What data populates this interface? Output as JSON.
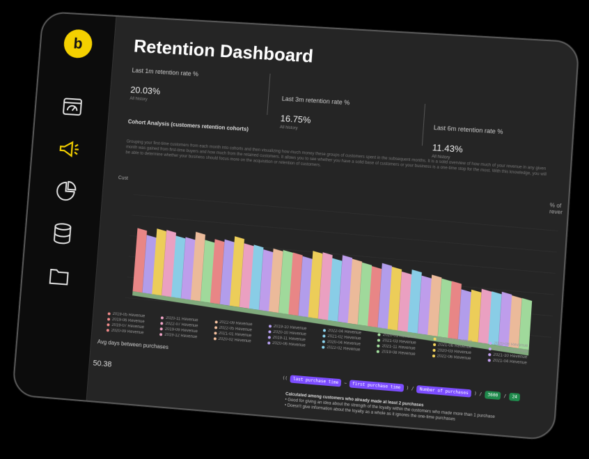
{
  "app": {
    "logo_glyph": "b",
    "title": "Retention Dashboard"
  },
  "sidebar": {
    "icons": [
      "dashboard-icon",
      "megaphone-icon",
      "pie-chart-icon",
      "database-icon",
      "folder-icon"
    ],
    "active": "megaphone-icon"
  },
  "colors": {
    "accent": "#f4d000"
  },
  "kpis": [
    {
      "label": "Last 1m retention rate %",
      "value": "20.03%",
      "sub": "All history"
    },
    {
      "label": "Last 3m retention rate %",
      "value": "16.75%",
      "sub": "All history"
    },
    {
      "label": "Last 6m retention rate %",
      "value": "11.43%",
      "sub": "All history"
    }
  ],
  "cohort": {
    "title": "Cohort Analysis (customers retention cohorts)",
    "description": "Grouping your first-time customers from each month into cohorts and then visualizing how much money these groups of customers spent in the subsequent months. It is a solid overview of how much of your revenue in any given month was gained from first-time buyers and how much from the retained customers. It allows you to see whether you have a solid base of customers or your business is a one-time stop for the most. With this knowledge, you will be able to determine whether your business should focus more on the acquisition or retention of customers.",
    "pct_label": "% of rever",
    "cust_label": "Cust"
  },
  "chart_data": {
    "type": "area",
    "title": "",
    "colors": [
      "#f28b8b",
      "#b9a3f5",
      "#f7d65c",
      "#f4a6c9",
      "#8ed6f0",
      "#c6a3f5",
      "#f5c2a0",
      "#a6e3a1"
    ],
    "column_heights": [
      57,
      52,
      59,
      59,
      55,
      55,
      61,
      55,
      57,
      58,
      62,
      57,
      57,
      54,
      56,
      56,
      55,
      53,
      59,
      59,
      55,
      59,
      57,
      55,
      53,
      57,
      55,
      52,
      55,
      51,
      53,
      51,
      50,
      44,
      45,
      47,
      46,
      47,
      45,
      44
    ],
    "legend": [
      "2019-05 Revenue",
      "2020-11 Revenue",
      "2022-09 Revenue",
      "2019-10 Revenue",
      "2022-04 Revenue",
      "2020-01 Revenue",
      "2020-12 Revenue",
      "2020-08 Revenue",
      "2019-06 Revenue",
      "2022-07 Revenue",
      "2022-05 Revenue",
      "2020-10 Revenue",
      "2021-02 Revenue",
      "2021-03 Revenue",
      "2021-06 Revenue",
      "2021-05 Revenue",
      "2019-07 Revenue",
      "2019-09 Revenue",
      "2021-01 Revenue",
      "2019-11 Revenue",
      "2020-04 Revenue",
      "2021-11 Revenue",
      "2020-03 Revenue",
      "2021-10 Revenue",
      "2020-09 Revenue",
      "2019-12 Revenue",
      "2020-02 Revenue",
      "2020-06 Revenue",
      "2022-02 Revenue",
      "2019-08 Revenue",
      "2022-06 Revenue",
      "2021-04 Revenue"
    ]
  },
  "avg_days": {
    "label": "Avg days between purchases",
    "value": "50.38"
  },
  "formula": {
    "open": "((",
    "chip1": "last purchase time",
    "minus": "–",
    "chip2": "first purchase time",
    "div1": ") /",
    "chip3": "Number of purchases",
    "div2": ") /",
    "chip4": "3600",
    "div3": "/",
    "chip5": "24"
  },
  "notes": {
    "header": "Calculated among customers who already made at least 2 purchases",
    "bullet1": "• Good for giving an idea about the strength of the loyalty within the customers who made more than 1 purchase",
    "bullet2": "• Doesn't give information about the loyalty as a whole as it ignores the one-time purchases"
  }
}
